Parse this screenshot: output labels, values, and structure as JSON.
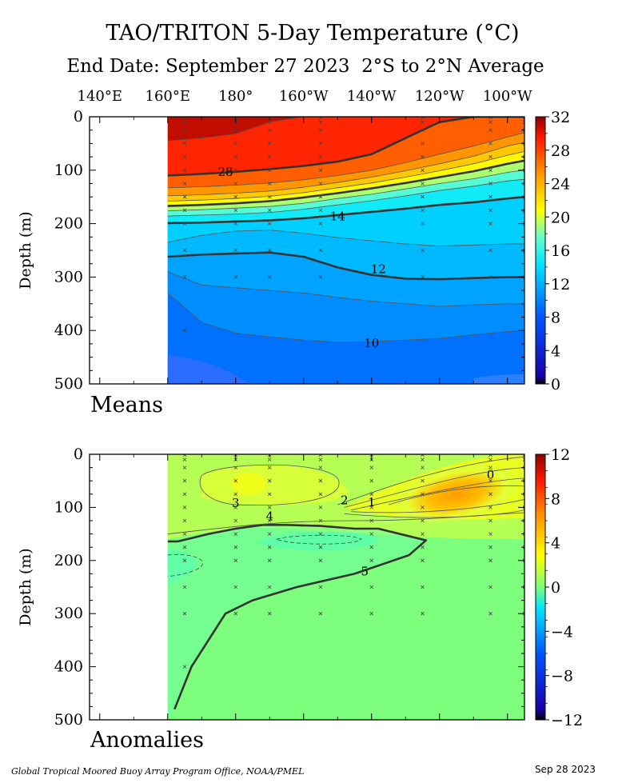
{
  "title": "TAO/TRITON 5-Day Temperature (°C)",
  "subtitle": "End Date: September 27 2023  2°S to 2°N Average",
  "footer_left": "Global Tropical Moored Buoy Array Program Office, NOAA/PMEL",
  "footer_right": "Sep 28 2023",
  "chart_data": [
    {
      "type": "heatmap",
      "panel_label": "Means",
      "ylabel": "Depth (m)",
      "x_tick_labels": [
        "140°E",
        "160°E",
        "180°",
        "160°W",
        "140°W",
        "120°W",
        "100°W"
      ],
      "x_ticks_lon": [
        140,
        160,
        180,
        200,
        220,
        240,
        260
      ],
      "xlim_lon": [
        137,
        265
      ],
      "data_xlim_lon": [
        160,
        265
      ],
      "y_ticks": [
        0,
        100,
        200,
        300,
        400,
        500
      ],
      "ylim": [
        0,
        500
      ],
      "colorbar": {
        "min": 0,
        "max": 32,
        "ticks": [
          0,
          4,
          8,
          12,
          16,
          20,
          24,
          28,
          32
        ]
      },
      "isotherm_depths": {
        "lon": [
          160,
          170,
          180,
          190,
          200,
          210,
          220,
          230,
          240,
          250,
          260,
          265
        ],
        "levels": [
          {
            "value": 10,
            "depth": [
              330,
              385,
              405,
              412,
              418,
              422,
              421,
              418,
              415,
              408,
              402,
              400
            ]
          },
          {
            "value": 11,
            "depth": [
              290,
              315,
              320,
              325,
              330,
              338,
              345,
              350,
              355,
              352,
              350,
              350
            ]
          },
          {
            "value": 12,
            "depth": [
              262,
              258,
              256,
              254,
              262,
              282,
              296,
              303,
              304,
              302,
              300,
              300
            ]
          },
          {
            "value": 13,
            "depth": [
              235,
              222,
              214,
              212,
              218,
              226,
              232,
              238,
              242,
              240,
              238,
              238
            ]
          },
          {
            "value": 14,
            "depth": [
              199,
              198,
              196,
              194,
              190,
              184,
              178,
              172,
              165,
              160,
              153,
              150
            ]
          },
          {
            "value": 16,
            "depth": [
              186,
              184,
              182,
              179,
              173,
              165,
              157,
              148,
              138,
              130,
              120,
              117
            ]
          },
          {
            "value": 18,
            "depth": [
              176,
              174,
              171,
              168,
              162,
              153,
              145,
              135,
              125,
              116,
              104,
              100
            ]
          },
          {
            "value": 20,
            "depth": [
              167,
              165,
              162,
              158,
              151,
              143,
              134,
              124,
              113,
              102,
              88,
              82
            ]
          },
          {
            "value": 22,
            "depth": [
              158,
              156,
              153,
              149,
              142,
              133,
              124,
              113,
              101,
              88,
              72,
              65
            ]
          },
          {
            "value": 24,
            "depth": [
              148,
              146,
              143,
              139,
              132,
              123,
              113,
              101,
              88,
              74,
              55,
              48
            ]
          },
          {
            "value": 26,
            "depth": [
              133,
              131,
              128,
              124,
              118,
              110,
              100,
              86,
              70,
              55,
              38,
              30
            ]
          },
          {
            "value": 28,
            "depth": [
              110,
              107,
              103,
              98,
              92,
              84,
              70,
              40,
              10,
              0,
              0,
              0
            ]
          },
          {
            "value": 30,
            "depth": [
              45,
              40,
              32,
              10,
              0,
              0,
              0,
              0,
              0,
              0,
              0,
              0
            ]
          }
        ]
      },
      "contour_labels": [
        "28",
        "14",
        "12",
        "10"
      ],
      "contour_label_positions": [
        {
          "text": "28",
          "lon": 177,
          "depth": 105
        },
        {
          "text": "14",
          "lon": 210,
          "depth": 188
        },
        {
          "text": "12",
          "lon": 222,
          "depth": 287
        },
        {
          "text": "10",
          "lon": 220,
          "depth": 425
        }
      ],
      "sample_points": {
        "lon": [
          165,
          180,
          190,
          205,
          235,
          255,
          265
        ],
        "depth": [
          1,
          10,
          25,
          50,
          75,
          100,
          125,
          150,
          175,
          200,
          250,
          300
        ]
      }
    },
    {
      "type": "heatmap",
      "panel_label": "Anomalies",
      "ylabel": "Depth (m)",
      "y_ticks": [
        0,
        100,
        200,
        300,
        400,
        500
      ],
      "ylim": [
        0,
        500
      ],
      "colorbar": {
        "min": -12,
        "max": 12,
        "ticks": [
          -12,
          -8,
          -4,
          0,
          4,
          8,
          12
        ]
      },
      "contour_labels": [
        "0",
        "1",
        "2",
        "3",
        "4",
        "5"
      ],
      "contour_label_positions": [
        {
          "text": "5",
          "lon": 255,
          "depth": 40
        },
        {
          "text": "4",
          "lon": 220,
          "depth": 92
        },
        {
          "text": "3",
          "lon": 212,
          "depth": 88
        },
        {
          "text": "2",
          "lon": 180,
          "depth": 93
        },
        {
          "text": "1",
          "lon": 190,
          "depth": 118
        },
        {
          "text": "0",
          "lon": 218,
          "depth": 222
        }
      ],
      "zero_contour": {
        "lon": [
          160,
          163,
          167,
          172,
          180,
          188,
          195,
          205,
          215,
          222,
          236,
          231,
          215,
          198,
          185,
          177,
          167,
          162
        ],
        "depth": [
          164,
          164,
          158,
          150,
          140,
          133,
          133,
          135,
          140,
          140,
          162,
          190,
          225,
          250,
          275,
          300,
          400,
          480
        ]
      },
      "sample_points": {
        "lon": [
          165,
          180,
          190,
          205,
          220,
          235,
          255,
          265
        ],
        "depth": [
          1,
          10,
          25,
          50,
          75,
          100,
          125,
          150,
          175,
          200,
          250,
          300
        ]
      }
    }
  ]
}
